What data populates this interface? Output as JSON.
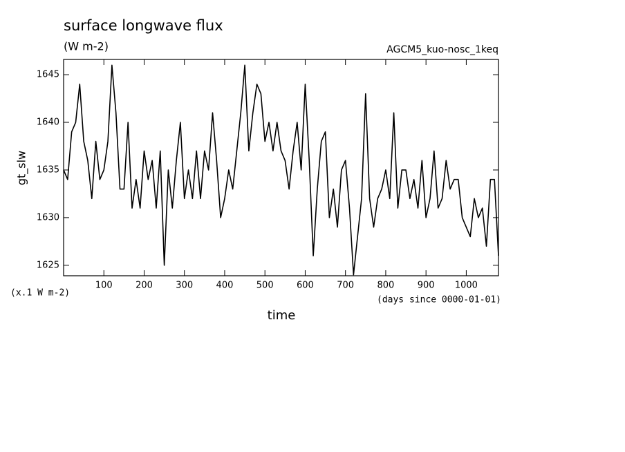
{
  "chart_data": {
    "type": "line",
    "title": "surface longwave flux",
    "subtitle": "(W m-2)",
    "annotation": "AGCM5_kuo-nosc_1keq",
    "y_label": "gt_slw",
    "y_units": "(x.1 W m-2)",
    "x_label": "time",
    "x_units": "(days since 0000-01-01)",
    "x": [
      0,
      10,
      20,
      30,
      40,
      50,
      60,
      70,
      80,
      90,
      100,
      110,
      120,
      130,
      140,
      150,
      160,
      170,
      180,
      190,
      200,
      210,
      220,
      230,
      240,
      250,
      260,
      270,
      280,
      290,
      300,
      310,
      320,
      330,
      340,
      350,
      360,
      370,
      380,
      390,
      400,
      410,
      420,
      430,
      440,
      450,
      460,
      470,
      480,
      490,
      500,
      510,
      520,
      530,
      540,
      550,
      560,
      570,
      580,
      590,
      600,
      610,
      620,
      630,
      640,
      650,
      660,
      670,
      680,
      690,
      700,
      710,
      720,
      730,
      740,
      750,
      760,
      770,
      780,
      790,
      800,
      810,
      820,
      830,
      840,
      850,
      860,
      870,
      880,
      890,
      900,
      910,
      920,
      930,
      940,
      950,
      960,
      970,
      980,
      990,
      1000,
      1010,
      1020,
      1030,
      1040,
      1050,
      1060,
      1070,
      1080
    ],
    "series": [
      {
        "name": "gt_slw",
        "color": "#000000",
        "values": [
          1635,
          1634,
          1639,
          1640,
          1644,
          1638,
          1636,
          1632,
          1638,
          1634,
          1635,
          1638,
          1646,
          1641,
          1633,
          1633,
          1640,
          1631,
          1634,
          1631,
          1637,
          1634,
          1636,
          1631,
          1637,
          1625,
          1635,
          1631,
          1636,
          1640,
          1632,
          1635,
          1632,
          1637,
          1632,
          1637,
          1635,
          1641,
          1636,
          1630,
          1632,
          1635,
          1633,
          1637,
          1641,
          1646,
          1637,
          1641,
          1644,
          1643,
          1638,
          1640,
          1637,
          1640,
          1637,
          1636,
          1633,
          1637,
          1640,
          1635,
          1644,
          1636,
          1626,
          1633,
          1638,
          1639,
          1630,
          1633,
          1629,
          1635,
          1636,
          1631,
          1624,
          1628,
          1632,
          1643,
          1632,
          1629,
          1632,
          1633,
          1635,
          1632,
          1641,
          1631,
          1635,
          1635,
          1632,
          1634,
          1631,
          1636,
          1630,
          1632,
          1637,
          1631,
          1632,
          1636,
          1633,
          1634,
          1634,
          1630,
          1629,
          1628,
          1632,
          1630,
          1631,
          1627,
          1634,
          1634,
          1626
        ]
      }
    ],
    "xlim": [
      0,
      1080
    ],
    "ylim": [
      1623.9,
      1646.6
    ],
    "xticks": [
      100,
      200,
      300,
      400,
      500,
      600,
      700,
      800,
      900,
      1000
    ],
    "yticks": [
      1625,
      1630,
      1635,
      1640,
      1645
    ]
  }
}
